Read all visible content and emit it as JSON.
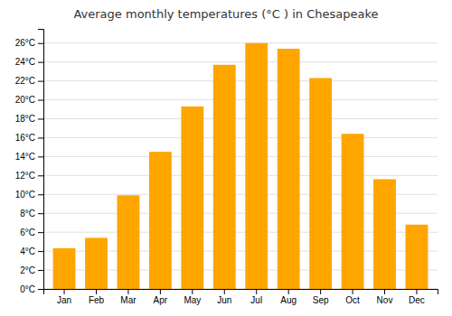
{
  "chart_data": {
    "type": "bar",
    "title": "Average monthly temperatures (°C ) in Chesapeake",
    "categories": [
      "Jan",
      "Feb",
      "Mar",
      "Apr",
      "May",
      "Jun",
      "Jul",
      "Aug",
      "Sep",
      "Oct",
      "Nov",
      "Dec"
    ],
    "values": [
      4.3,
      5.4,
      9.9,
      14.5,
      19.3,
      23.7,
      26.0,
      25.4,
      22.3,
      16.4,
      11.6,
      6.8
    ],
    "color": "#FFA500",
    "ylim": [
      0,
      27.5
    ],
    "yticks": [
      {
        "value": 0,
        "label": "0°C"
      },
      {
        "value": 2,
        "label": "2°C"
      },
      {
        "value": 4,
        "label": "4°C"
      },
      {
        "value": 6,
        "label": "6°C"
      },
      {
        "value": 8,
        "label": "8°C"
      },
      {
        "value": 10,
        "label": "10°C"
      },
      {
        "value": 12,
        "label": "12°C"
      },
      {
        "value": 14,
        "label": "14°C"
      },
      {
        "value": 16,
        "label": "16°C"
      },
      {
        "value": 18,
        "label": "18°C"
      },
      {
        "value": 20,
        "label": "20°C"
      },
      {
        "value": 22,
        "label": "22°C"
      },
      {
        "value": 24,
        "label": "24°C"
      },
      {
        "value": 26,
        "label": "26°C"
      }
    ],
    "grid": true
  }
}
